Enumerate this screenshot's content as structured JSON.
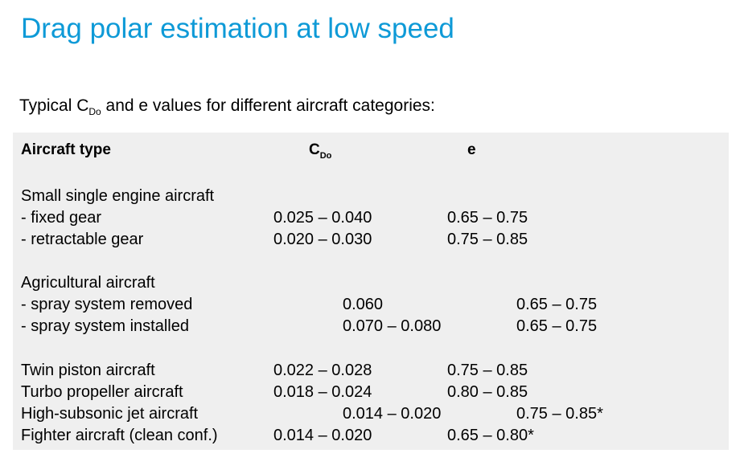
{
  "title": "Drag polar estimation at low speed",
  "subtitle": {
    "pre": "Typical C",
    "sub": "Do",
    "post": " and e values for different aircraft categories:"
  },
  "table": {
    "headers": {
      "type": "Aircraft type",
      "cdo_main": "C",
      "cdo_sub": "Do",
      "e": "e"
    },
    "rows": [
      {
        "type": "Small single engine aircraft",
        "cdo": "",
        "e": ""
      },
      {
        "type": "- fixed gear",
        "cdo": "0.025 – 0.040",
        "e": "0.65 – 0.75"
      },
      {
        "type": "- retractable gear",
        "cdo": "0.020 – 0.030",
        "e": "0.75 – 0.85"
      },
      {
        "type": "Agricultural aircraft",
        "cdo": "",
        "e": ""
      },
      {
        "type": "- spray system removed",
        "cdo": "0.060",
        "e": "0.65 – 0.75"
      },
      {
        "type": "- spray system installed",
        "cdo": "0.070 – 0.080",
        "e": "0.65 – 0.75"
      },
      {
        "type": "Twin piston aircraft",
        "cdo": "0.022 – 0.028",
        "e": "0.75 – 0.85"
      },
      {
        "type": "Turbo propeller aircraft",
        "cdo": "0.018 – 0.024",
        "e": "0.80 – 0.85"
      },
      {
        "type": "High-subsonic jet aircraft",
        "cdo": "0.014 – 0.020",
        "e": "0.75 – 0.85*"
      },
      {
        "type": "Fighter aircraft (clean conf.)",
        "cdo": "0.014 – 0.020",
        "e": "0.65 – 0.80*"
      }
    ]
  }
}
